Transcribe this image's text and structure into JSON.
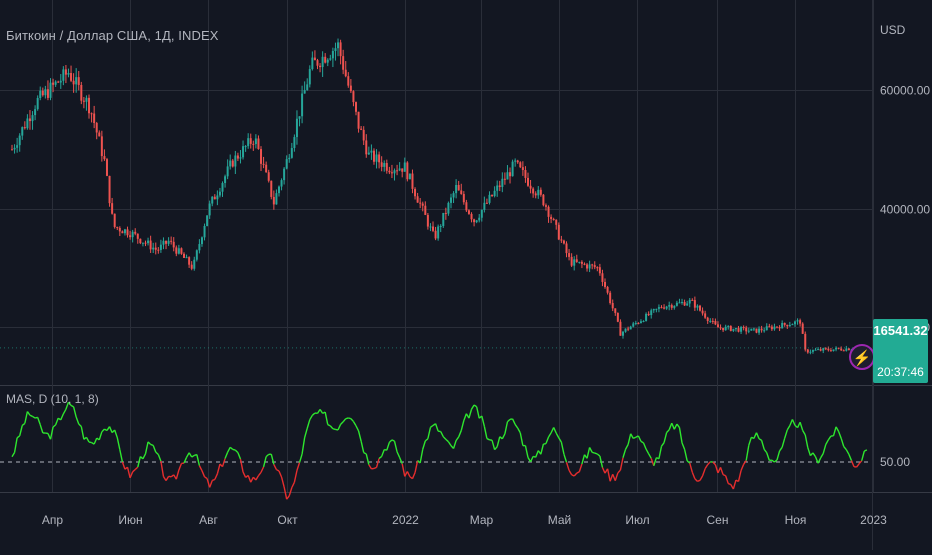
{
  "header": {
    "title": "Биткоин / Доллар США, 1Д, INDEX"
  },
  "axis": {
    "currency": "USD",
    "price_ticks": [
      "60000.00",
      "40000.00",
      "20000.00"
    ],
    "indicator_tick": "50.00"
  },
  "indicator": {
    "label": "MAS, D (10, 1, 8)"
  },
  "last_price": {
    "value": "16541.32",
    "countdown": "20:37:46"
  },
  "colors": {
    "background": "#131722",
    "grid": "#2a2e39",
    "up": "#26a69a",
    "down": "#ef5350",
    "osc_up": "#2ee62e",
    "osc_down": "#e62e2e",
    "price_tag": "#22ab94",
    "alert": "#9c27b0"
  },
  "chart_data": [
    {
      "type": "candlestick",
      "title": "Биткоин / Доллар США, 1Д, INDEX",
      "ylabel": "USD",
      "x_ticks": [
        "Апр",
        "Июн",
        "Авг",
        "Окт",
        "2022",
        "Мар",
        "Май",
        "Июл",
        "Сен",
        "Ноя",
        "2023"
      ],
      "ylim": [
        9000,
        70000
      ],
      "close_series": [
        {
          "date": "2021-03-01",
          "close": 50000
        },
        {
          "date": "2021-03-20",
          "close": 58000
        },
        {
          "date": "2021-04-14",
          "close": 63000
        },
        {
          "date": "2021-05-01",
          "close": 57000
        },
        {
          "date": "2021-05-12",
          "close": 48000
        },
        {
          "date": "2021-05-19",
          "close": 37000
        },
        {
          "date": "2021-06-01",
          "close": 36000
        },
        {
          "date": "2021-06-22",
          "close": 33000
        },
        {
          "date": "2021-07-01",
          "close": 34500
        },
        {
          "date": "2021-07-20",
          "close": 30000
        },
        {
          "date": "2021-08-01",
          "close": 40000
        },
        {
          "date": "2021-08-20",
          "close": 48000
        },
        {
          "date": "2021-09-06",
          "close": 52000
        },
        {
          "date": "2021-09-21",
          "close": 41000
        },
        {
          "date": "2021-10-01",
          "close": 48000
        },
        {
          "date": "2021-10-20",
          "close": 64000
        },
        {
          "date": "2021-11-10",
          "close": 67500
        },
        {
          "date": "2021-11-26",
          "close": 54000
        },
        {
          "date": "2021-12-04",
          "close": 49000
        },
        {
          "date": "2021-12-20",
          "close": 47000
        },
        {
          "date": "2022-01-01",
          "close": 47000
        },
        {
          "date": "2022-01-24",
          "close": 35000
        },
        {
          "date": "2022-02-10",
          "close": 43500
        },
        {
          "date": "2022-02-24",
          "close": 38000
        },
        {
          "date": "2022-03-28",
          "close": 47500
        },
        {
          "date": "2022-04-20",
          "close": 41000
        },
        {
          "date": "2022-05-10",
          "close": 31000
        },
        {
          "date": "2022-06-01",
          "close": 30000
        },
        {
          "date": "2022-06-14",
          "close": 22000
        },
        {
          "date": "2022-06-18",
          "close": 19000
        },
        {
          "date": "2022-07-20",
          "close": 23500
        },
        {
          "date": "2022-08-12",
          "close": 24400
        },
        {
          "date": "2022-09-01",
          "close": 20000
        },
        {
          "date": "2022-10-01",
          "close": 19400
        },
        {
          "date": "2022-11-05",
          "close": 21000
        },
        {
          "date": "2022-11-09",
          "close": 16000
        },
        {
          "date": "2022-12-20",
          "close": 16541.32
        }
      ]
    },
    {
      "type": "line",
      "name": "MAS, D (10, 1, 8)",
      "ylim": [
        0,
        100
      ],
      "baseline": 50,
      "x": [
        "2021-03",
        "2021-04",
        "2021-05",
        "2021-06",
        "2021-07",
        "2021-08",
        "2021-09",
        "2021-10",
        "2021-11",
        "2021-12",
        "2022-01",
        "2022-02",
        "2022-03",
        "2022-04",
        "2022-05",
        "2022-06",
        "2022-07",
        "2022-08",
        "2022-09",
        "2022-10",
        "2022-11",
        "2022-12"
      ],
      "values": [
        62,
        75,
        70,
        52,
        48,
        46,
        50,
        38,
        82,
        60,
        48,
        66,
        72,
        62,
        58,
        46,
        58,
        62,
        38,
        56,
        64,
        58
      ]
    }
  ]
}
